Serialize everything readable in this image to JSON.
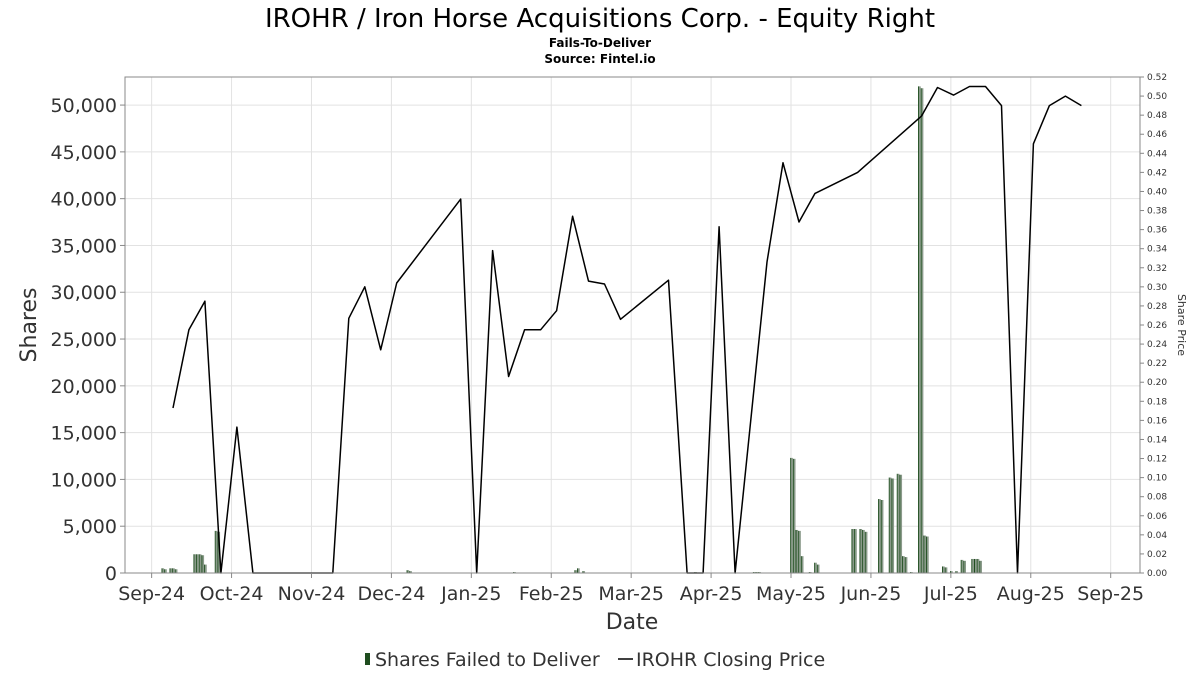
{
  "chart_data": {
    "type": "bar",
    "title": "IROHR / Iron Horse Acquisitions Corp. - Equity Right",
    "subtitle": "Fails-To-Deliver",
    "source": "Source: Fintel.io",
    "xlabel": "Date",
    "ylabel": "Shares",
    "y2label": "Share Price",
    "ylim": [
      0,
      53000
    ],
    "y2lim": [
      0,
      0.52
    ],
    "xlim": [
      "2024-09-13",
      "2025-09-29"
    ],
    "grid": true,
    "legend_position": "bottom",
    "x_ticks": [
      {
        "date": "2024-09-23",
        "label": "Sep-24"
      },
      {
        "date": "2024-10-23",
        "label": "Oct-24"
      },
      {
        "date": "2024-11-22",
        "label": "Nov-24"
      },
      {
        "date": "2024-12-22",
        "label": "Dec-24"
      },
      {
        "date": "2025-01-21",
        "label": "Jan-25"
      },
      {
        "date": "2025-02-20",
        "label": "Feb-25"
      },
      {
        "date": "2025-03-22",
        "label": "Mar-25"
      },
      {
        "date": "2025-04-21",
        "label": "Apr-25"
      },
      {
        "date": "2025-05-21",
        "label": "May-25"
      },
      {
        "date": "2025-06-20",
        "label": "Jun-25"
      },
      {
        "date": "2025-07-20",
        "label": "Jul-25"
      },
      {
        "date": "2025-08-19",
        "label": "Aug-25"
      },
      {
        "date": "2025-09-18",
        "label": "Sep-25"
      }
    ],
    "y_ticks": [
      {
        "value": 0,
        "label": "0"
      },
      {
        "value": 5000,
        "label": "5,000"
      },
      {
        "value": 10000,
        "label": "10,000"
      },
      {
        "value": 15000,
        "label": "15,000"
      },
      {
        "value": 20000,
        "label": "20,000"
      },
      {
        "value": 25000,
        "label": "25,000"
      },
      {
        "value": 30000,
        "label": "30,000"
      },
      {
        "value": 35000,
        "label": "35,000"
      },
      {
        "value": 40000,
        "label": "40,000"
      },
      {
        "value": 45000,
        "label": "45,000"
      },
      {
        "value": 50000,
        "label": "50,000"
      }
    ],
    "y2_ticks": [
      {
        "value": 0.0,
        "label": "0.00"
      },
      {
        "value": 0.02,
        "label": "0.02"
      },
      {
        "value": 0.04,
        "label": "0.04"
      },
      {
        "value": 0.06,
        "label": "0.06"
      },
      {
        "value": 0.08,
        "label": "0.08"
      },
      {
        "value": 0.1,
        "label": "0.10"
      },
      {
        "value": 0.12,
        "label": "0.12"
      },
      {
        "value": 0.14,
        "label": "0.14"
      },
      {
        "value": 0.16,
        "label": "0.16"
      },
      {
        "value": 0.18,
        "label": "0.18"
      },
      {
        "value": 0.2,
        "label": "0.20"
      },
      {
        "value": 0.22,
        "label": "0.22"
      },
      {
        "value": 0.24,
        "label": "0.24"
      },
      {
        "value": 0.26,
        "label": "0.26"
      },
      {
        "value": 0.28,
        "label": "0.28"
      },
      {
        "value": 0.3,
        "label": "0.30"
      },
      {
        "value": 0.32,
        "label": "0.32"
      },
      {
        "value": 0.34,
        "label": "0.34"
      },
      {
        "value": 0.36,
        "label": "0.36"
      },
      {
        "value": 0.38,
        "label": "0.38"
      },
      {
        "value": 0.4,
        "label": "0.40"
      },
      {
        "value": 0.42,
        "label": "0.42"
      },
      {
        "value": 0.44,
        "label": "0.44"
      },
      {
        "value": 0.46,
        "label": "0.46"
      },
      {
        "value": 0.48,
        "label": "0.48"
      },
      {
        "value": 0.5,
        "label": "0.50"
      },
      {
        "value": 0.52,
        "label": "0.52"
      }
    ],
    "series": [
      {
        "name": "Shares Failed to Deliver",
        "type": "bar",
        "axis": "left",
        "color": "#1f4d1f",
        "shade_color": "#8a9a8a",
        "points": [
          {
            "x": "2024-09-27",
            "y": 500
          },
          {
            "x": "2024-09-28",
            "y": 400
          },
          {
            "x": "2024-09-30",
            "y": 500
          },
          {
            "x": "2024-10-01",
            "y": 500
          },
          {
            "x": "2024-10-02",
            "y": 400
          },
          {
            "x": "2024-10-09",
            "y": 2000
          },
          {
            "x": "2024-10-10",
            "y": 2000
          },
          {
            "x": "2024-10-11",
            "y": 2000
          },
          {
            "x": "2024-10-12",
            "y": 1900
          },
          {
            "x": "2024-10-13",
            "y": 900
          },
          {
            "x": "2024-10-17",
            "y": 4500
          },
          {
            "x": "2024-10-18",
            "y": 4400
          },
          {
            "x": "2024-12-28",
            "y": 300
          },
          {
            "x": "2024-12-29",
            "y": 200
          },
          {
            "x": "2025-02-06",
            "y": 100
          },
          {
            "x": "2025-03-01",
            "y": 300
          },
          {
            "x": "2025-03-02",
            "y": 500
          },
          {
            "x": "2025-03-04",
            "y": 200
          },
          {
            "x": "2025-04-15",
            "y": 100
          },
          {
            "x": "2025-05-07",
            "y": 100
          },
          {
            "x": "2025-05-08",
            "y": 100
          },
          {
            "x": "2025-05-09",
            "y": 100
          },
          {
            "x": "2025-05-21",
            "y": 12300
          },
          {
            "x": "2025-05-22",
            "y": 12200
          },
          {
            "x": "2025-05-23",
            "y": 4600
          },
          {
            "x": "2025-05-24",
            "y": 4500
          },
          {
            "x": "2025-05-25",
            "y": 1800
          },
          {
            "x": "2025-05-28",
            "y": 100
          },
          {
            "x": "2025-05-30",
            "y": 1100
          },
          {
            "x": "2025-05-31",
            "y": 900
          },
          {
            "x": "2025-06-13",
            "y": 4700
          },
          {
            "x": "2025-06-14",
            "y": 4700
          },
          {
            "x": "2025-06-16",
            "y": 4700
          },
          {
            "x": "2025-06-17",
            "y": 4600
          },
          {
            "x": "2025-06-18",
            "y": 4400
          },
          {
            "x": "2025-06-23",
            "y": 7900
          },
          {
            "x": "2025-06-24",
            "y": 7800
          },
          {
            "x": "2025-06-27",
            "y": 10200
          },
          {
            "x": "2025-06-28",
            "y": 10100
          },
          {
            "x": "2025-06-30",
            "y": 10600
          },
          {
            "x": "2025-07-01",
            "y": 10500
          },
          {
            "x": "2025-07-02",
            "y": 1800
          },
          {
            "x": "2025-07-03",
            "y": 1700
          },
          {
            "x": "2025-07-05",
            "y": 100
          },
          {
            "x": "2025-07-08",
            "y": 52000
          },
          {
            "x": "2025-07-09",
            "y": 51800
          },
          {
            "x": "2025-07-10",
            "y": 4000
          },
          {
            "x": "2025-07-11",
            "y": 3900
          },
          {
            "x": "2025-07-17",
            "y": 700
          },
          {
            "x": "2025-07-18",
            "y": 600
          },
          {
            "x": "2025-07-20",
            "y": 200
          },
          {
            "x": "2025-07-22",
            "y": 200
          },
          {
            "x": "2025-07-24",
            "y": 1400
          },
          {
            "x": "2025-07-25",
            "y": 1300
          },
          {
            "x": "2025-07-28",
            "y": 1500
          },
          {
            "x": "2025-07-29",
            "y": 1500
          },
          {
            "x": "2025-07-30",
            "y": 1500
          },
          {
            "x": "2025-07-31",
            "y": 1300
          }
        ]
      },
      {
        "name": "IROHR Closing Price",
        "type": "line",
        "axis": "right",
        "color": "#000000",
        "points": [
          {
            "x": "2024-10-01",
            "y": 0.173
          },
          {
            "x": "2024-10-07",
            "y": 0.255
          },
          {
            "x": "2024-10-13",
            "y": 0.285
          },
          {
            "x": "2024-10-19",
            "y": 0.0
          },
          {
            "x": "2024-10-25",
            "y": 0.153
          },
          {
            "x": "2024-10-31",
            "y": 0.0
          },
          {
            "x": "2024-11-30",
            "y": 0.0
          },
          {
            "x": "2024-12-06",
            "y": 0.267
          },
          {
            "x": "2024-12-12",
            "y": 0.3
          },
          {
            "x": "2024-12-18",
            "y": 0.234
          },
          {
            "x": "2024-12-24",
            "y": 0.304
          },
          {
            "x": "2025-01-17",
            "y": 0.392
          },
          {
            "x": "2025-01-23",
            "y": 0.0
          },
          {
            "x": "2025-01-29",
            "y": 0.338
          },
          {
            "x": "2025-02-04",
            "y": 0.206
          },
          {
            "x": "2025-02-10",
            "y": 0.255
          },
          {
            "x": "2025-02-16",
            "y": 0.255
          },
          {
            "x": "2025-02-22",
            "y": 0.275
          },
          {
            "x": "2025-02-28",
            "y": 0.374
          },
          {
            "x": "2025-03-06",
            "y": 0.306
          },
          {
            "x": "2025-03-12",
            "y": 0.303
          },
          {
            "x": "2025-03-18",
            "y": 0.266
          },
          {
            "x": "2025-04-05",
            "y": 0.307
          },
          {
            "x": "2025-04-12",
            "y": 0.0
          },
          {
            "x": "2025-04-18",
            "y": 0.0
          },
          {
            "x": "2025-04-24",
            "y": 0.363
          },
          {
            "x": "2025-04-30",
            "y": 0.0
          },
          {
            "x": "2025-05-12",
            "y": 0.326
          },
          {
            "x": "2025-05-18",
            "y": 0.43
          },
          {
            "x": "2025-05-24",
            "y": 0.368
          },
          {
            "x": "2025-05-30",
            "y": 0.398
          },
          {
            "x": "2025-06-15",
            "y": 0.42
          },
          {
            "x": "2025-07-09",
            "y": 0.479
          },
          {
            "x": "2025-07-15",
            "y": 0.509
          },
          {
            "x": "2025-07-21",
            "y": 0.501
          },
          {
            "x": "2025-07-27",
            "y": 0.51
          },
          {
            "x": "2025-08-02",
            "y": 0.51
          },
          {
            "x": "2025-08-08",
            "y": 0.49
          },
          {
            "x": "2025-08-14",
            "y": 0.0
          },
          {
            "x": "2025-08-20",
            "y": 0.45
          },
          {
            "x": "2025-08-26",
            "y": 0.49
          },
          {
            "x": "2025-09-01",
            "y": 0.5
          },
          {
            "x": "2025-09-07",
            "y": 0.49
          }
        ]
      }
    ]
  }
}
